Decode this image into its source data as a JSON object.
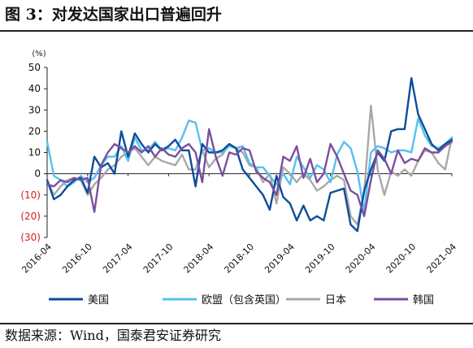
{
  "header": {
    "title": "图 3：对发达国家出口普遍回升"
  },
  "footer": {
    "source": "数据来源：Wind，国泰君安证券研究"
  },
  "colors": {
    "us": "#0d4d9a",
    "eu": "#56c0ef",
    "jp": "#a8a8a8",
    "kr": "#7b4f9e",
    "negative_tick": "#d42020",
    "axis": "#222222"
  },
  "chart_data": {
    "type": "line",
    "unit": "(%)",
    "ylim": [
      -30,
      50
    ],
    "yticks": [
      {
        "value": 50,
        "label": "50"
      },
      {
        "value": 40,
        "label": "40"
      },
      {
        "value": 30,
        "label": "30"
      },
      {
        "value": 20,
        "label": "20"
      },
      {
        "value": 10,
        "label": "10"
      },
      {
        "value": 0,
        "label": "0"
      },
      {
        "value": -10,
        "label": "(10)"
      },
      {
        "value": -20,
        "label": "(20)"
      },
      {
        "value": -30,
        "label": "(30)"
      }
    ],
    "x": [
      "2016-04",
      "2016-05",
      "2016-06",
      "2016-07",
      "2016-08",
      "2016-09",
      "2016-10",
      "2016-11",
      "2016-12",
      "2017-01",
      "2017-02",
      "2017-03",
      "2017-04",
      "2017-05",
      "2017-06",
      "2017-07",
      "2017-08",
      "2017-09",
      "2017-10",
      "2017-11",
      "2017-12",
      "2018-01",
      "2018-02",
      "2018-03",
      "2018-04",
      "2018-05",
      "2018-06",
      "2018-07",
      "2018-08",
      "2018-09",
      "2018-10",
      "2018-11",
      "2018-12",
      "2019-01",
      "2019-02",
      "2019-03",
      "2019-04",
      "2019-05",
      "2019-06",
      "2019-07",
      "2019-08",
      "2019-09",
      "2019-10",
      "2019-11",
      "2019-12",
      "2020-01",
      "2020-02",
      "2020-03",
      "2020-04",
      "2020-05",
      "2020-06",
      "2020-07",
      "2020-08",
      "2020-09",
      "2020-10",
      "2020-11",
      "2020-12",
      "2021-01",
      "2021-02",
      "2021-03",
      "2021-04"
    ],
    "xticks": [
      "2016-04",
      "2016-10",
      "2017-04",
      "2017-10",
      "2018-04",
      "2018-10",
      "2019-04",
      "2019-10",
      "2020-04",
      "2020-10",
      "2021-04"
    ],
    "grid": false,
    "legend_position": "bottom",
    "series": [
      {
        "key": "us",
        "name": "美国",
        "values": [
          -3,
          -12,
          -10,
          -6,
          -3,
          -2,
          -9,
          8,
          3,
          5,
          0,
          20,
          8,
          19,
          14,
          10,
          14,
          11,
          13,
          16,
          11,
          11,
          -6,
          14,
          10,
          10,
          11,
          14,
          12,
          2,
          -2,
          -6,
          -10,
          -17,
          -1,
          -11,
          -14,
          -22,
          -15,
          -22,
          -20,
          -22,
          -9,
          -8,
          -7,
          -24,
          -27,
          -8,
          2,
          10,
          6,
          20,
          21,
          21,
          45,
          28,
          21,
          14,
          11,
          14,
          16
        ]
      },
      {
        "key": "eu",
        "name": "欧盟（包含英国）",
        "values": [
          15,
          -1,
          -3,
          -6,
          -4,
          -1,
          -4,
          -2,
          4,
          8,
          8,
          13,
          6,
          17,
          11,
          11,
          15,
          11,
          12,
          11,
          17,
          25,
          24,
          11,
          12,
          10,
          10,
          13,
          12,
          13,
          5,
          3,
          3,
          -1,
          -5,
          0,
          -5,
          8,
          3,
          -2,
          4,
          2,
          -4,
          9,
          15,
          12,
          1,
          -18,
          10,
          13,
          12,
          10,
          11,
          11,
          10,
          26,
          18,
          13,
          12,
          14,
          17
        ]
      },
      {
        "key": "jp",
        "name": "日本",
        "values": [
          -3,
          -10,
          -6,
          -3,
          -2,
          -3,
          -10,
          -5,
          -2,
          2,
          4,
          8,
          10,
          12,
          8,
          4,
          8,
          6,
          5,
          4,
          9,
          2,
          2,
          11,
          3,
          7,
          9,
          14,
          12,
          10,
          4,
          3,
          -4,
          0,
          -14,
          3,
          0,
          -4,
          0,
          -3,
          -8,
          -6,
          -3,
          -1,
          -3,
          -20,
          -24,
          -9,
          32,
          2,
          -10,
          1,
          -1,
          2,
          -1,
          6,
          11,
          10,
          5,
          2,
          17
        ]
      },
      {
        "key": "kr",
        "name": "韩国",
        "values": [
          -5,
          -6,
          -3,
          -4,
          -2,
          -3,
          -2,
          -18,
          4,
          10,
          14,
          12,
          10,
          13,
          10,
          13,
          8,
          12,
          9,
          8,
          12,
          14,
          10,
          -4,
          21,
          8,
          -1,
          10,
          9,
          12,
          11,
          1,
          -2,
          -4,
          -10,
          8,
          6,
          13,
          -2,
          7,
          -4,
          0,
          14,
          8,
          0,
          -8,
          -10,
          -20,
          -3,
          11,
          7,
          0,
          11,
          5,
          7,
          6,
          12,
          10,
          10,
          13,
          15
        ]
      }
    ]
  }
}
